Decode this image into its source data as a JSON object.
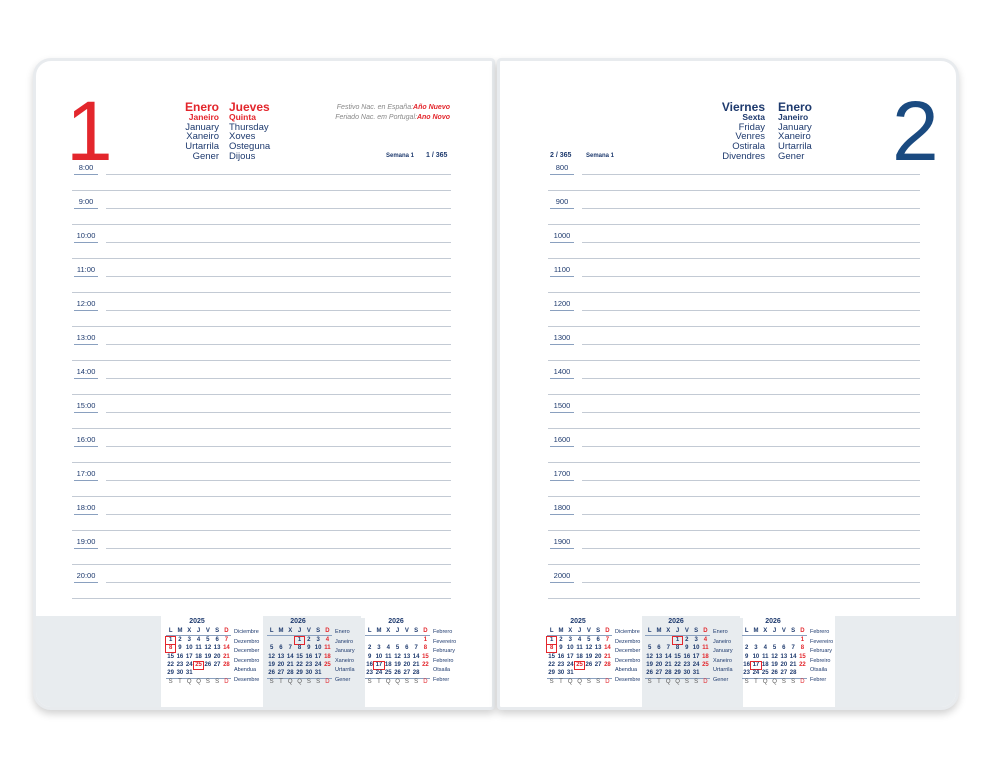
{
  "left": {
    "day_number": "1",
    "month": [
      "Enero",
      "Janeiro",
      "January",
      "Xaneiro",
      "Urtarrila",
      "Gener"
    ],
    "weekday": [
      "Jueves",
      "Quinta",
      "Thursday",
      "Xoves",
      "Osteguna",
      "Dijous"
    ],
    "holiday_es_label": "Festivo Nac. en España:",
    "holiday_es": "Año Nuevo",
    "holiday_pt_label": "Feriado Nac. em Portugal:",
    "holiday_pt": "Ano Novo",
    "week": "Semana 1",
    "day_of_year": "1 / 365",
    "hours": [
      "8:00",
      "9:00",
      "10:00",
      "11:00",
      "12:00",
      "13:00",
      "14:00",
      "15:00",
      "16:00",
      "17:00",
      "18:00",
      "19:00",
      "20:00"
    ]
  },
  "right": {
    "day_number": "2",
    "weekday": [
      "Viernes",
      "Sexta",
      "Friday",
      "Venres",
      "Ostirala",
      "Divendres"
    ],
    "month": [
      "Enero",
      "Janeiro",
      "January",
      "Xaneiro",
      "Urtarrila",
      "Gener"
    ],
    "week": "Semana 1",
    "day_of_year": "2 / 365",
    "hours": [
      "800",
      "900",
      "1000",
      "1100",
      "1200",
      "1300",
      "1400",
      "1500",
      "1600",
      "1700",
      "1800",
      "1900",
      "2000"
    ]
  },
  "colors": {
    "red": "#e3262c",
    "blue": "#1a4a80"
  },
  "calendars": [
    {
      "year": "2025",
      "header": [
        "L",
        "M",
        "X",
        "J",
        "V",
        "S",
        "D"
      ],
      "footer": [
        "S",
        "T",
        "Q",
        "Q",
        "S",
        "S",
        "D"
      ],
      "names": [
        "Diciembre",
        "Dezembro",
        "December",
        "Decembro",
        "Abendua",
        "Desembre"
      ],
      "weeks": [
        [
          "1",
          "2",
          "3",
          "4",
          "5",
          "6",
          "7"
        ],
        [
          "8",
          "9",
          "10",
          "11",
          "12",
          "13",
          "14"
        ],
        [
          "15",
          "16",
          "17",
          "18",
          "19",
          "20",
          "21"
        ],
        [
          "22",
          "23",
          "24",
          "25",
          "26",
          "27",
          "28"
        ],
        [
          "29",
          "30",
          "31",
          "",
          "",
          "",
          ""
        ]
      ],
      "boxed": [
        "1",
        "8",
        "25"
      ],
      "red": [
        "7",
        "14",
        "21",
        "28",
        "8",
        "25"
      ]
    },
    {
      "year": "2026",
      "header": [
        "L",
        "M",
        "X",
        "J",
        "V",
        "S",
        "D"
      ],
      "footer": [
        "S",
        "T",
        "Q",
        "Q",
        "S",
        "S",
        "D"
      ],
      "names": [
        "Enero",
        "Janeiro",
        "January",
        "Xaneiro",
        "Urtarrila",
        "Gener"
      ],
      "weeks": [
        [
          "",
          "",
          "",
          "1",
          "2",
          "3",
          "4"
        ],
        [
          "5",
          "6",
          "7",
          "8",
          "9",
          "10",
          "11"
        ],
        [
          "12",
          "13",
          "14",
          "15",
          "16",
          "17",
          "18"
        ],
        [
          "19",
          "20",
          "21",
          "22",
          "23",
          "24",
          "25"
        ],
        [
          "26",
          "27",
          "28",
          "29",
          "30",
          "31",
          ""
        ]
      ],
      "boxed": [
        "1"
      ],
      "red": [
        "4",
        "11",
        "18",
        "25"
      ]
    },
    {
      "year": "2026",
      "header": [
        "L",
        "M",
        "X",
        "J",
        "V",
        "S",
        "D"
      ],
      "footer": [
        "S",
        "T",
        "Q",
        "Q",
        "S",
        "S",
        "D"
      ],
      "names": [
        "Febrero",
        "Fevereiro",
        "February",
        "Febreiro",
        "Otsaila",
        "Febrer"
      ],
      "weeks": [
        [
          "",
          "",
          "",
          "",
          "",
          "",
          "1"
        ],
        [
          "2",
          "3",
          "4",
          "5",
          "6",
          "7",
          "8"
        ],
        [
          "9",
          "10",
          "11",
          "12",
          "13",
          "14",
          "15"
        ],
        [
          "16",
          "17",
          "18",
          "19",
          "20",
          "21",
          "22"
        ],
        [
          "23",
          "24",
          "25",
          "26",
          "27",
          "28",
          ""
        ]
      ],
      "boxed": [
        "17"
      ],
      "red": [
        "1",
        "8",
        "15",
        "22"
      ]
    }
  ]
}
